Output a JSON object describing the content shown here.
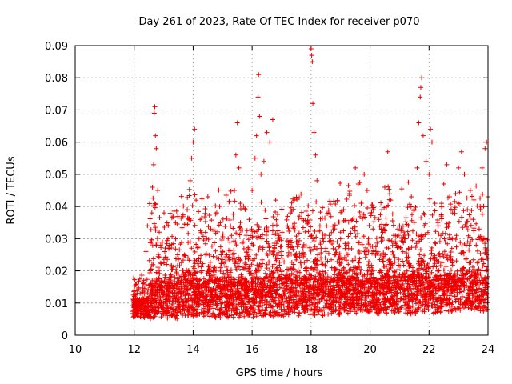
{
  "chart_data": {
    "type": "scatter",
    "title": "Day 261 of 2023, Rate Of TEC Index for receiver p070",
    "xlabel": "GPS time / hours",
    "ylabel": "ROTI / TECUs",
    "xlim": [
      10,
      24
    ],
    "ylim": [
      0,
      0.09
    ],
    "xticks": [
      "10",
      "12",
      "14",
      "16",
      "18",
      "20",
      "22",
      "24"
    ],
    "yticks": [
      "0",
      "0.01",
      "0.02",
      "0.03",
      "0.04",
      "0.05",
      "0.06",
      "0.07",
      "0.08",
      "0.09"
    ],
    "grid": true,
    "marker": "+",
    "color": "#ee0000",
    "series": [
      {
        "points": [
          [
            12.0,
            0.0095
          ],
          [
            12.05,
            0.0082
          ],
          [
            12.1,
            0.011
          ],
          [
            12.15,
            0.0075
          ],
          [
            12.2,
            0.013
          ],
          [
            12.25,
            0.009
          ],
          [
            12.3,
            0.016
          ],
          [
            12.35,
            0.0055
          ],
          [
            12.4,
            0.026
          ],
          [
            12.45,
            0.034
          ],
          [
            12.5,
            0.012
          ],
          [
            12.55,
            0.02
          ],
          [
            12.6,
            0.038
          ],
          [
            12.62,
            0.046
          ],
          [
            12.66,
            0.053
          ],
          [
            12.68,
            0.069
          ],
          [
            12.7,
            0.071
          ],
          [
            12.72,
            0.062
          ],
          [
            12.75,
            0.058
          ],
          [
            12.8,
            0.045
          ],
          [
            12.85,
            0.032
          ],
          [
            12.9,
            0.028
          ],
          [
            12.95,
            0.015
          ],
          [
            13.0,
            0.01
          ],
          [
            13.1,
            0.022
          ],
          [
            13.2,
            0.018
          ],
          [
            13.3,
            0.013
          ],
          [
            13.4,
            0.035
          ],
          [
            13.5,
            0.019
          ],
          [
            13.6,
            0.011
          ],
          [
            13.7,
            0.025
          ],
          [
            13.8,
            0.039
          ],
          [
            13.9,
            0.048
          ],
          [
            13.95,
            0.055
          ],
          [
            14.0,
            0.06
          ],
          [
            14.05,
            0.064
          ],
          [
            14.1,
            0.042
          ],
          [
            14.2,
            0.03
          ],
          [
            14.3,
            0.02
          ],
          [
            14.4,
            0.014
          ],
          [
            14.5,
            0.043
          ],
          [
            14.6,
            0.033
          ],
          [
            14.7,
            0.021
          ],
          [
            14.8,
            0.038
          ],
          [
            14.9,
            0.04
          ],
          [
            15.0,
            0.026
          ],
          [
            15.1,
            0.017
          ],
          [
            15.2,
            0.024
          ],
          [
            15.3,
            0.031
          ],
          [
            15.4,
            0.045
          ],
          [
            15.45,
            0.056
          ],
          [
            15.5,
            0.066
          ],
          [
            15.55,
            0.052
          ],
          [
            15.6,
            0.041
          ],
          [
            15.7,
            0.029
          ],
          [
            15.8,
            0.022
          ],
          [
            15.9,
            0.036
          ],
          [
            16.0,
            0.045
          ],
          [
            16.1,
            0.055
          ],
          [
            16.15,
            0.062
          ],
          [
            16.2,
            0.074
          ],
          [
            16.22,
            0.081
          ],
          [
            16.25,
            0.068
          ],
          [
            16.3,
            0.05
          ],
          [
            16.4,
            0.054
          ],
          [
            16.5,
            0.063
          ],
          [
            16.6,
            0.06
          ],
          [
            16.7,
            0.067
          ],
          [
            16.8,
            0.042
          ],
          [
            16.9,
            0.031
          ],
          [
            17.0,
            0.026
          ],
          [
            17.1,
            0.018
          ],
          [
            17.2,
            0.034
          ],
          [
            17.3,
            0.038
          ],
          [
            17.4,
            0.022
          ],
          [
            17.5,
            0.029
          ],
          [
            17.6,
            0.037
          ],
          [
            17.7,
            0.016
          ],
          [
            17.8,
            0.011
          ],
          [
            17.9,
            0.035
          ],
          [
            18.0,
            0.089
          ],
          [
            18.02,
            0.087
          ],
          [
            18.04,
            0.085
          ],
          [
            18.06,
            0.072
          ],
          [
            18.1,
            0.063
          ],
          [
            18.15,
            0.056
          ],
          [
            18.2,
            0.048
          ],
          [
            18.3,
            0.034
          ],
          [
            18.4,
            0.03
          ],
          [
            18.5,
            0.027
          ],
          [
            18.6,
            0.038
          ],
          [
            18.7,
            0.021
          ],
          [
            18.8,
            0.025
          ],
          [
            18.9,
            0.018
          ],
          [
            19.0,
            0.032
          ],
          [
            19.1,
            0.039
          ],
          [
            19.2,
            0.028
          ],
          [
            19.3,
            0.044
          ],
          [
            19.4,
            0.036
          ],
          [
            19.5,
            0.052
          ],
          [
            19.6,
            0.047
          ],
          [
            19.7,
            0.041
          ],
          [
            19.8,
            0.05
          ],
          [
            19.9,
            0.045
          ],
          [
            20.0,
            0.038
          ],
          [
            20.1,
            0.033
          ],
          [
            20.2,
            0.026
          ],
          [
            20.3,
            0.036
          ],
          [
            20.4,
            0.039
          ],
          [
            20.5,
            0.046
          ],
          [
            20.6,
            0.057
          ],
          [
            20.7,
            0.042
          ],
          [
            20.8,
            0.031
          ],
          [
            20.9,
            0.028
          ],
          [
            21.0,
            0.034
          ],
          [
            21.1,
            0.023
          ],
          [
            21.2,
            0.03
          ],
          [
            21.3,
            0.027
          ],
          [
            21.4,
            0.043
          ],
          [
            21.5,
            0.039
          ],
          [
            21.6,
            0.052
          ],
          [
            21.65,
            0.066
          ],
          [
            21.7,
            0.074
          ],
          [
            21.72,
            0.077
          ],
          [
            21.75,
            0.08
          ],
          [
            21.8,
            0.062
          ],
          [
            21.9,
            0.054
          ],
          [
            22.0,
            0.05
          ],
          [
            22.05,
            0.064
          ],
          [
            22.1,
            0.06
          ],
          [
            22.2,
            0.041
          ],
          [
            22.3,
            0.035
          ],
          [
            22.4,
            0.031
          ],
          [
            22.5,
            0.047
          ],
          [
            22.6,
            0.053
          ],
          [
            22.7,
            0.043
          ],
          [
            22.8,
            0.038
          ],
          [
            22.9,
            0.044
          ],
          [
            23.0,
            0.052
          ],
          [
            23.1,
            0.057
          ],
          [
            23.2,
            0.05
          ],
          [
            23.3,
            0.039
          ],
          [
            23.4,
            0.045
          ],
          [
            23.5,
            0.036
          ],
          [
            23.6,
            0.028
          ],
          [
            23.7,
            0.033
          ],
          [
            23.8,
            0.052
          ],
          [
            23.9,
            0.058
          ],
          [
            23.95,
            0.06
          ],
          [
            24.0,
            0.043
          ]
        ]
      }
    ]
  }
}
